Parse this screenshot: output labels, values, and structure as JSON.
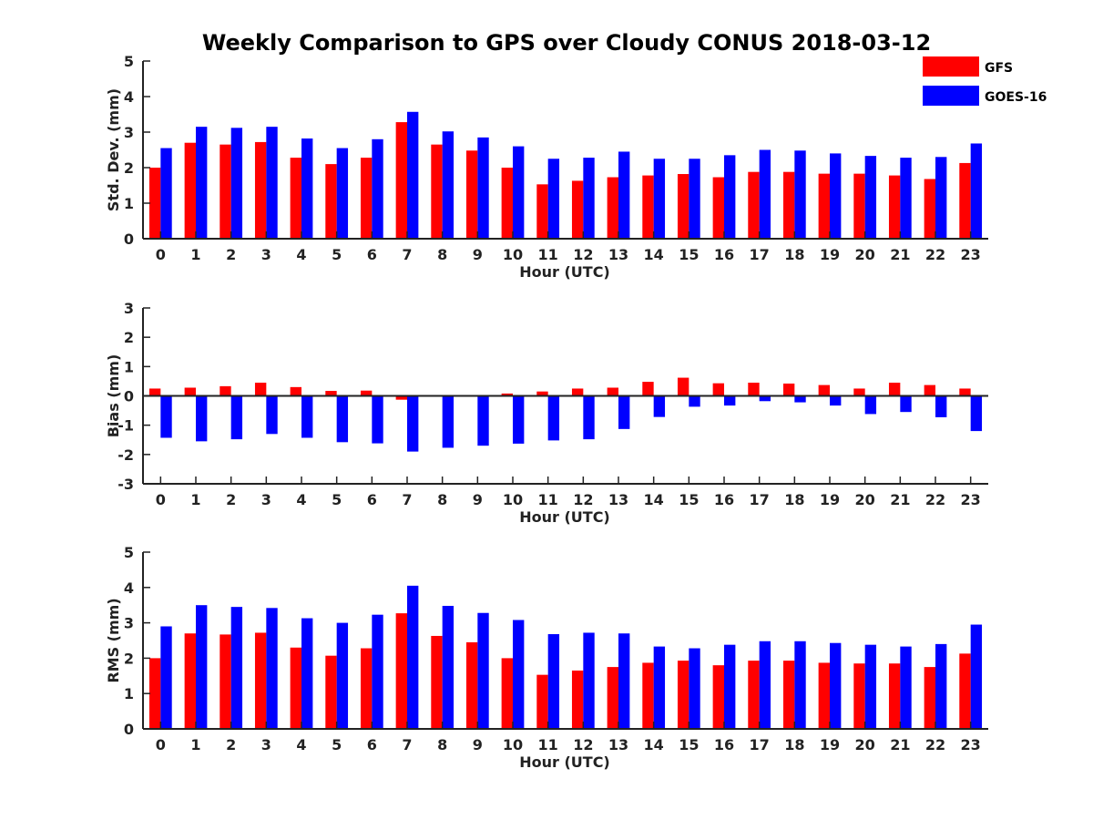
{
  "title": "Weekly Comparison to GPS over Cloudy CONUS 2018-03-12",
  "colors": {
    "GFS": "#ff0000",
    "GOES-16": "#0000ff",
    "axis": "#222222"
  },
  "legend": {
    "placement": "top-right",
    "entries": [
      "GFS",
      "GOES-16"
    ]
  },
  "chart_data": [
    {
      "type": "bar",
      "xlabel": "Hour (UTC)",
      "ylabel": "Std. Dev. (mm)",
      "ylim": [
        0,
        5
      ],
      "yticks": [
        "0",
        "1",
        "2",
        "3",
        "4",
        "5"
      ],
      "categories": [
        "0",
        "1",
        "2",
        "3",
        "4",
        "5",
        "6",
        "7",
        "8",
        "9",
        "10",
        "11",
        "12",
        "13",
        "14",
        "15",
        "16",
        "17",
        "18",
        "19",
        "20",
        "21",
        "22",
        "23"
      ],
      "series": [
        {
          "name": "GFS",
          "values": [
            2.0,
            2.7,
            2.65,
            2.72,
            2.28,
            2.1,
            2.28,
            3.28,
            2.65,
            2.48,
            2.0,
            1.53,
            1.63,
            1.73,
            1.78,
            1.82,
            1.73,
            1.88,
            1.88,
            1.83,
            1.83,
            1.78,
            1.68,
            2.13
          ]
        },
        {
          "name": "GOES-16",
          "values": [
            2.55,
            3.15,
            3.12,
            3.15,
            2.82,
            2.55,
            2.8,
            3.57,
            3.02,
            2.85,
            2.6,
            2.25,
            2.28,
            2.45,
            2.25,
            2.25,
            2.35,
            2.5,
            2.48,
            2.4,
            2.33,
            2.28,
            2.3,
            2.68
          ]
        }
      ],
      "grid": false
    },
    {
      "type": "bar",
      "xlabel": "Hour (UTC)",
      "ylabel": "Bias (mm)",
      "ylim": [
        -3,
        3
      ],
      "yticks": [
        "-3",
        "-2",
        "-1",
        "0",
        "1",
        "2",
        "3"
      ],
      "categories": [
        "0",
        "1",
        "2",
        "3",
        "4",
        "5",
        "6",
        "7",
        "8",
        "9",
        "10",
        "11",
        "12",
        "13",
        "14",
        "15",
        "16",
        "17",
        "18",
        "19",
        "20",
        "21",
        "22",
        "23"
      ],
      "series": [
        {
          "name": "GFS",
          "values": [
            0.25,
            0.28,
            0.33,
            0.45,
            0.3,
            0.17,
            0.18,
            -0.13,
            0.0,
            0.0,
            0.08,
            0.15,
            0.25,
            0.28,
            0.48,
            0.62,
            0.43,
            0.45,
            0.42,
            0.37,
            0.25,
            0.45,
            0.37,
            0.25
          ]
        },
        {
          "name": "GOES-16",
          "values": [
            -1.43,
            -1.55,
            -1.48,
            -1.3,
            -1.43,
            -1.58,
            -1.62,
            -1.9,
            -1.77,
            -1.7,
            -1.63,
            -1.52,
            -1.48,
            -1.13,
            -0.72,
            -0.37,
            -0.33,
            -0.18,
            -0.22,
            -0.33,
            -0.62,
            -0.55,
            -0.73,
            -1.2
          ]
        }
      ],
      "grid": false
    },
    {
      "type": "bar",
      "xlabel": "Hour (UTC)",
      "ylabel": "RMS (mm)",
      "ylim": [
        0,
        5
      ],
      "yticks": [
        "0",
        "1",
        "2",
        "3",
        "4",
        "5"
      ],
      "categories": [
        "0",
        "1",
        "2",
        "3",
        "4",
        "5",
        "6",
        "7",
        "8",
        "9",
        "10",
        "11",
        "12",
        "13",
        "14",
        "15",
        "16",
        "17",
        "18",
        "19",
        "20",
        "21",
        "22",
        "23"
      ],
      "series": [
        {
          "name": "GFS",
          "values": [
            2.0,
            2.7,
            2.67,
            2.72,
            2.3,
            2.07,
            2.28,
            3.27,
            2.63,
            2.45,
            2.0,
            1.53,
            1.65,
            1.75,
            1.87,
            1.93,
            1.8,
            1.93,
            1.93,
            1.87,
            1.85,
            1.85,
            1.75,
            2.13
          ]
        },
        {
          "name": "GOES-16",
          "values": [
            2.9,
            3.5,
            3.45,
            3.42,
            3.13,
            3.0,
            3.23,
            4.05,
            3.48,
            3.28,
            3.08,
            2.68,
            2.72,
            2.7,
            2.33,
            2.28,
            2.38,
            2.48,
            2.48,
            2.43,
            2.38,
            2.33,
            2.4,
            2.95
          ]
        }
      ],
      "grid": false
    }
  ]
}
